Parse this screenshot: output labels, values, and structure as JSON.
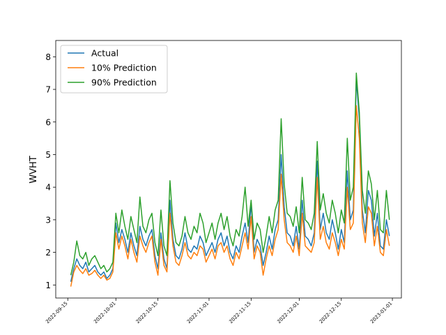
{
  "chart_data": {
    "type": "line",
    "title": "",
    "xlabel": "",
    "ylabel": "WVHT",
    "x_tick_labels": [
      "2022-09-15",
      "2022-10-01",
      "2022-10-15",
      "2022-11-01",
      "2022-11-15",
      "2022-12-01",
      "2022-12-15",
      "2023-01-01"
    ],
    "y_tick_labels": [
      "1",
      "2",
      "3",
      "4",
      "5",
      "6",
      "7",
      "8"
    ],
    "xlim": [
      "2022-09-11",
      "2023-01-04"
    ],
    "ylim": [
      0.6,
      8.5
    ],
    "legend_position": "upper-left",
    "grid": false,
    "series": [
      {
        "name": "Actual",
        "color": "#1f77b4"
      },
      {
        "name": "10% Prediction",
        "color": "#ff7f0e"
      },
      {
        "name": "90% Prediction",
        "color": "#2ca02c"
      }
    ],
    "x": [
      "2022-09-16",
      "2022-09-17",
      "2022-09-18",
      "2022-09-19",
      "2022-09-20",
      "2022-09-21",
      "2022-09-22",
      "2022-09-23",
      "2022-09-24",
      "2022-09-25",
      "2022-09-26",
      "2022-09-27",
      "2022-09-28",
      "2022-09-29",
      "2022-09-30",
      "2022-10-01",
      "2022-10-02",
      "2022-10-03",
      "2022-10-04",
      "2022-10-05",
      "2022-10-06",
      "2022-10-07",
      "2022-10-08",
      "2022-10-09",
      "2022-10-10",
      "2022-10-11",
      "2022-10-12",
      "2022-10-13",
      "2022-10-14",
      "2022-10-15",
      "2022-10-16",
      "2022-10-17",
      "2022-10-18",
      "2022-10-19",
      "2022-10-20",
      "2022-10-21",
      "2022-10-22",
      "2022-10-23",
      "2022-10-24",
      "2022-10-25",
      "2022-10-26",
      "2022-10-27",
      "2022-10-28",
      "2022-10-29",
      "2022-10-30",
      "2022-10-31",
      "2022-11-01",
      "2022-11-02",
      "2022-11-03",
      "2022-11-04",
      "2022-11-05",
      "2022-11-06",
      "2022-11-07",
      "2022-11-08",
      "2022-11-09",
      "2022-11-10",
      "2022-11-11",
      "2022-11-12",
      "2022-11-13",
      "2022-11-14",
      "2022-11-15",
      "2022-11-16",
      "2022-11-17",
      "2022-11-18",
      "2022-11-19",
      "2022-11-20",
      "2022-11-21",
      "2022-11-22",
      "2022-11-23",
      "2022-11-24",
      "2022-11-25",
      "2022-11-26",
      "2022-11-27",
      "2022-11-28",
      "2022-11-29",
      "2022-11-30",
      "2022-12-01",
      "2022-12-02",
      "2022-12-03",
      "2022-12-04",
      "2022-12-05",
      "2022-12-06",
      "2022-12-07",
      "2022-12-08",
      "2022-12-09",
      "2022-12-10",
      "2022-12-11",
      "2022-12-12",
      "2022-12-13",
      "2022-12-14",
      "2022-12-15",
      "2022-12-16",
      "2022-12-17",
      "2022-12-18",
      "2022-12-19",
      "2022-12-20",
      "2022-12-21",
      "2022-12-22",
      "2022-12-23",
      "2022-12-24",
      "2022-12-25",
      "2022-12-26",
      "2022-12-27",
      "2022-12-28",
      "2022-12-29",
      "2022-12-30",
      "2022-12-31"
    ],
    "actual": [
      1.1,
      1.5,
      1.8,
      1.6,
      1.5,
      1.7,
      1.4,
      1.5,
      1.6,
      1.4,
      1.3,
      1.4,
      1.2,
      1.3,
      1.5,
      2.9,
      2.3,
      2.7,
      2.4,
      2.0,
      2.6,
      2.2,
      1.9,
      2.8,
      2.4,
      2.2,
      2.5,
      2.7,
      1.9,
      1.5,
      2.6,
      1.8,
      1.5,
      3.6,
      2.4,
      1.9,
      1.8,
      2.1,
      2.6,
      2.1,
      2.0,
      2.2,
      2.1,
      2.5,
      2.3,
      1.9,
      2.1,
      2.3,
      2.0,
      2.4,
      2.6,
      2.2,
      2.5,
      2.0,
      1.8,
      2.2,
      2.0,
      2.5,
      2.9,
      2.3,
      3.5,
      2.0,
      2.4,
      2.2,
      1.6,
      2.0,
      2.5,
      2.1,
      2.7,
      3.0,
      5.0,
      3.4,
      2.6,
      2.5,
      2.2,
      2.8,
      2.1,
      3.6,
      2.5,
      2.4,
      2.2,
      2.6,
      4.8,
      2.7,
      3.2,
      2.6,
      2.4,
      3.0,
      2.6,
      2.1,
      2.7,
      2.3,
      4.5,
      3.0,
      3.3,
      7.3,
      6.1,
      3.3,
      2.6,
      3.9,
      3.6,
      2.5,
      3.2,
      2.2,
      2.1,
      3.0,
      2.5
    ],
    "p10": [
      0.95,
      1.4,
      1.6,
      1.45,
      1.35,
      1.5,
      1.3,
      1.35,
      1.45,
      1.3,
      1.2,
      1.3,
      1.15,
      1.2,
      1.4,
      2.6,
      2.1,
      2.5,
      2.2,
      1.8,
      2.4,
      2.0,
      1.7,
      2.5,
      2.2,
      2.0,
      2.3,
      2.5,
      1.7,
      1.3,
      2.4,
      1.6,
      1.4,
      3.2,
      2.2,
      1.7,
      1.6,
      1.9,
      2.3,
      1.9,
      1.8,
      2.0,
      1.9,
      2.2,
      2.1,
      1.7,
      1.9,
      2.1,
      1.8,
      2.2,
      2.3,
      2.0,
      2.2,
      1.8,
      1.6,
      2.0,
      1.8,
      2.2,
      2.6,
      2.1,
      3.1,
      1.8,
      2.2,
      2.0,
      1.3,
      1.8,
      2.2,
      1.9,
      2.4,
      2.7,
      4.4,
      3.0,
      2.3,
      2.2,
      2.0,
      2.5,
      1.9,
      3.2,
      2.2,
      2.1,
      2.0,
      2.3,
      4.3,
      2.4,
      2.8,
      2.3,
      2.1,
      2.6,
      2.3,
      1.9,
      2.4,
      2.1,
      4.0,
      2.7,
      2.9,
      6.5,
      5.5,
      2.9,
      2.3,
      3.4,
      3.2,
      2.2,
      2.8,
      2.0,
      1.9,
      2.7,
      2.2
    ],
    "p90": [
      1.3,
      1.7,
      2.35,
      1.9,
      1.8,
      2.0,
      1.6,
      1.8,
      1.9,
      1.7,
      1.5,
      1.6,
      1.4,
      1.5,
      1.7,
      3.2,
      2.6,
      3.3,
      2.8,
      2.4,
      3.1,
      2.7,
      2.3,
      3.7,
      2.8,
      2.6,
      3.0,
      3.2,
      2.3,
      1.9,
      3.3,
      2.2,
      1.9,
      4.2,
      2.9,
      2.3,
      2.2,
      2.5,
      3.1,
      2.6,
      2.4,
      2.8,
      2.6,
      3.2,
      2.9,
      2.3,
      2.6,
      2.9,
      2.4,
      2.9,
      3.2,
      2.7,
      3.1,
      2.5,
      2.2,
      2.7,
      2.5,
      3.1,
      4.0,
      2.8,
      3.6,
      2.4,
      2.9,
      2.7,
      2.0,
      2.5,
      3.1,
      2.6,
      3.3,
      3.6,
      6.1,
      4.1,
      3.2,
      3.1,
      2.8,
      3.4,
      2.6,
      4.3,
      3.0,
      2.9,
      2.7,
      3.2,
      5.4,
      3.3,
      3.8,
      3.2,
      2.9,
      3.6,
      3.2,
      2.6,
      3.3,
      2.9,
      5.5,
      3.6,
      4.0,
      7.5,
      6.3,
      3.9,
      3.2,
      4.5,
      4.1,
      3.0,
      3.9,
      2.7,
      2.6,
      3.9,
      3.0
    ]
  }
}
